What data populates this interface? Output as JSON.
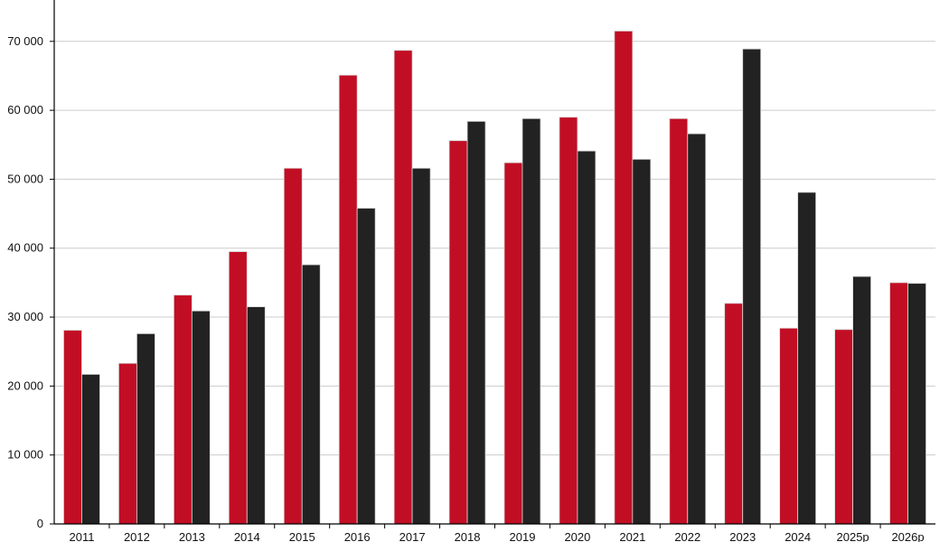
{
  "chart_data": {
    "type": "bar",
    "categories": [
      "2011",
      "2012",
      "2013",
      "2014",
      "2015",
      "2016",
      "2017",
      "2018",
      "2019",
      "2020",
      "2021",
      "2022",
      "2023",
      "2024",
      "2025p",
      "2026p"
    ],
    "series": [
      {
        "color": "#c20e24",
        "values": [
          28100,
          23300,
          33200,
          39500,
          51600,
          65100,
          68700,
          55600,
          52400,
          59000,
          71500,
          58800,
          32000,
          28400,
          28200,
          35000
        ]
      },
      {
        "color": "#222222",
        "values": [
          21700,
          27600,
          30900,
          31500,
          37600,
          45800,
          51600,
          58400,
          58800,
          54100,
          52900,
          56600,
          68900,
          48100,
          35900,
          34900
        ]
      }
    ],
    "ylim": [
      0,
      76000
    ],
    "y_ticks": [
      0,
      10000,
      20000,
      30000,
      40000,
      50000,
      60000,
      70000
    ],
    "y_tick_labels": [
      "0",
      "10 000",
      "20 000",
      "30 000",
      "40 000",
      "50 000",
      "60 000",
      "70 000"
    ],
    "grid": true,
    "title": "",
    "xlabel": "",
    "ylabel": ""
  }
}
